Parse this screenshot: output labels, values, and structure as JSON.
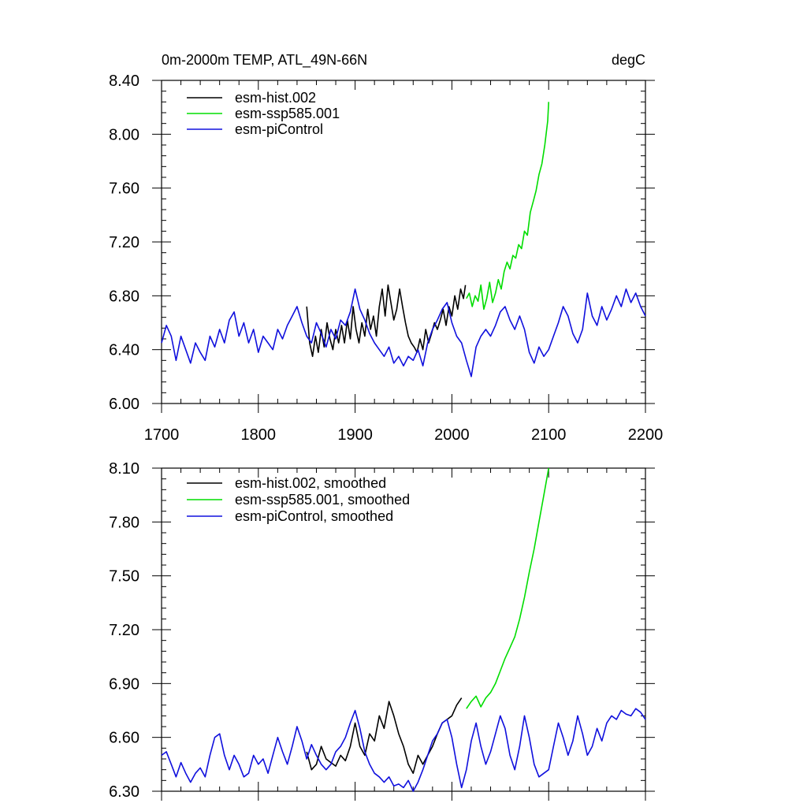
{
  "chart_data": [
    {
      "type": "line",
      "title": "0m-2000m TEMP, ATL_49N-66N",
      "units": "degC",
      "xlim": [
        1700,
        2200
      ],
      "ylim": [
        6.0,
        8.4
      ],
      "x_ticks": [
        "1700",
        "1800",
        "1900",
        "2000",
        "2100",
        "2200"
      ],
      "y_ticks": [
        "6.00",
        "6.40",
        "6.80",
        "7.20",
        "7.60",
        "8.00",
        "8.40"
      ],
      "legend_position": "top-left",
      "grid": false,
      "series": [
        {
          "name": "esm-hist.002",
          "color": "#000000",
          "x": [
            1850,
            1853,
            1856,
            1859,
            1862,
            1865,
            1868,
            1871,
            1874,
            1877,
            1880,
            1883,
            1886,
            1889,
            1892,
            1895,
            1898,
            1901,
            1904,
            1907,
            1910,
            1913,
            1916,
            1919,
            1922,
            1925,
            1928,
            1931,
            1934,
            1937,
            1940,
            1943,
            1946,
            1949,
            1952,
            1955,
            1958,
            1961,
            1964,
            1967,
            1970,
            1973,
            1976,
            1979,
            1982,
            1985,
            1988,
            1991,
            1994,
            1997,
            2000,
            2003,
            2006,
            2009,
            2012,
            2014
          ],
          "y": [
            6.72,
            6.45,
            6.35,
            6.5,
            6.38,
            6.55,
            6.42,
            6.6,
            6.48,
            6.4,
            6.55,
            6.45,
            6.58,
            6.45,
            6.62,
            6.48,
            6.72,
            6.55,
            6.45,
            6.6,
            6.5,
            6.7,
            6.55,
            6.65,
            6.5,
            6.72,
            6.85,
            6.65,
            6.88,
            6.75,
            6.62,
            6.7,
            6.85,
            6.72,
            6.6,
            6.5,
            6.45,
            6.42,
            6.38,
            6.48,
            6.4,
            6.55,
            6.45,
            6.52,
            6.6,
            6.55,
            6.62,
            6.7,
            6.58,
            6.72,
            6.65,
            6.8,
            6.7,
            6.85,
            6.78,
            6.88
          ]
        },
        {
          "name": "esm-ssp585.001",
          "color": "#00dd00",
          "x": [
            2015,
            2018,
            2021,
            2024,
            2027,
            2030,
            2033,
            2036,
            2039,
            2042,
            2045,
            2048,
            2051,
            2054,
            2057,
            2060,
            2063,
            2066,
            2069,
            2072,
            2075,
            2078,
            2081,
            2084,
            2087,
            2090,
            2093,
            2096,
            2099,
            2100
          ],
          "y": [
            6.78,
            6.82,
            6.72,
            6.8,
            6.76,
            6.88,
            6.7,
            6.78,
            6.9,
            6.75,
            6.82,
            6.92,
            6.85,
            6.98,
            7.05,
            7.0,
            7.1,
            7.08,
            7.18,
            7.15,
            7.28,
            7.25,
            7.42,
            7.5,
            7.58,
            7.7,
            7.78,
            7.92,
            8.1,
            8.24
          ]
        },
        {
          "name": "esm-piControl",
          "color": "#1010dd",
          "x": [
            1700,
            1705,
            1710,
            1715,
            1720,
            1725,
            1730,
            1735,
            1740,
            1745,
            1750,
            1755,
            1760,
            1765,
            1770,
            1775,
            1780,
            1785,
            1790,
            1795,
            1800,
            1805,
            1810,
            1815,
            1820,
            1825,
            1830,
            1835,
            1840,
            1845,
            1850,
            1855,
            1860,
            1865,
            1870,
            1875,
            1880,
            1885,
            1890,
            1895,
            1900,
            1905,
            1910,
            1915,
            1920,
            1925,
            1930,
            1935,
            1940,
            1945,
            1950,
            1955,
            1960,
            1965,
            1970,
            1975,
            1980,
            1985,
            1990,
            1995,
            2000,
            2005,
            2010,
            2015,
            2020,
            2025,
            2030,
            2035,
            2040,
            2045,
            2050,
            2055,
            2060,
            2065,
            2070,
            2075,
            2080,
            2085,
            2090,
            2095,
            2100,
            2105,
            2110,
            2115,
            2120,
            2125,
            2130,
            2135,
            2140,
            2145,
            2150,
            2155,
            2160,
            2165,
            2170,
            2175,
            2180,
            2185,
            2190,
            2195,
            2200
          ],
          "y": [
            6.45,
            6.58,
            6.5,
            6.32,
            6.5,
            6.4,
            6.3,
            6.45,
            6.38,
            6.32,
            6.5,
            6.42,
            6.55,
            6.45,
            6.62,
            6.68,
            6.5,
            6.6,
            6.45,
            6.55,
            6.38,
            6.5,
            6.45,
            6.4,
            6.55,
            6.48,
            6.58,
            6.65,
            6.72,
            6.6,
            6.5,
            6.45,
            6.6,
            6.52,
            6.42,
            6.55,
            6.48,
            6.62,
            6.58,
            6.68,
            6.85,
            6.7,
            6.62,
            6.52,
            6.45,
            6.4,
            6.35,
            6.42,
            6.3,
            6.35,
            6.28,
            6.35,
            6.32,
            6.4,
            6.28,
            6.45,
            6.55,
            6.62,
            6.7,
            6.75,
            6.6,
            6.5,
            6.45,
            6.32,
            6.2,
            6.42,
            6.5,
            6.55,
            6.5,
            6.58,
            6.68,
            6.72,
            6.62,
            6.55,
            6.65,
            6.55,
            6.38,
            6.3,
            6.42,
            6.35,
            6.4,
            6.5,
            6.6,
            6.72,
            6.65,
            6.52,
            6.45,
            6.55,
            6.82,
            6.65,
            6.58,
            6.72,
            6.62,
            6.7,
            6.8,
            6.72,
            6.85,
            6.75,
            6.82,
            6.72,
            6.65
          ]
        }
      ]
    },
    {
      "type": "line",
      "xlim": [
        1700,
        2200
      ],
      "ylim": [
        6.3,
        8.1
      ],
      "y_ticks": [
        "6.30",
        "6.60",
        "6.90",
        "7.20",
        "7.50",
        "7.80",
        "8.10"
      ],
      "legend_position": "top-left",
      "grid": false,
      "series": [
        {
          "name": "esm-hist.002, smoothed",
          "color": "#000000",
          "x": [
            1850,
            1855,
            1860,
            1865,
            1870,
            1875,
            1880,
            1885,
            1890,
            1895,
            1900,
            1905,
            1910,
            1915,
            1920,
            1925,
            1930,
            1935,
            1940,
            1945,
            1950,
            1955,
            1960,
            1965,
            1970,
            1975,
            1980,
            1985,
            1990,
            1995,
            2000,
            2005,
            2010
          ],
          "y": [
            6.52,
            6.42,
            6.45,
            6.55,
            6.48,
            6.46,
            6.44,
            6.5,
            6.47,
            6.55,
            6.68,
            6.55,
            6.5,
            6.62,
            6.58,
            6.72,
            6.65,
            6.8,
            6.72,
            6.62,
            6.55,
            6.45,
            6.4,
            6.5,
            6.45,
            6.5,
            6.55,
            6.62,
            6.68,
            6.7,
            6.72,
            6.78,
            6.82
          ]
        },
        {
          "name": "esm-ssp585.001, smoothed",
          "color": "#00dd00",
          "x": [
            2015,
            2020,
            2025,
            2030,
            2035,
            2040,
            2045,
            2050,
            2055,
            2060,
            2065,
            2070,
            2075,
            2080,
            2085,
            2090,
            2095,
            2100
          ],
          "y": [
            6.76,
            6.8,
            6.83,
            6.77,
            6.82,
            6.85,
            6.9,
            6.97,
            7.04,
            7.1,
            7.16,
            7.26,
            7.38,
            7.52,
            7.65,
            7.8,
            7.95,
            8.1
          ]
        },
        {
          "name": "esm-piControl, smoothed",
          "color": "#1010dd",
          "x": [
            1700,
            1705,
            1710,
            1715,
            1720,
            1725,
            1730,
            1735,
            1740,
            1745,
            1750,
            1755,
            1760,
            1765,
            1770,
            1775,
            1780,
            1785,
            1790,
            1795,
            1800,
            1805,
            1810,
            1815,
            1820,
            1825,
            1830,
            1835,
            1840,
            1845,
            1850,
            1855,
            1860,
            1865,
            1870,
            1875,
            1880,
            1885,
            1890,
            1895,
            1900,
            1905,
            1910,
            1915,
            1920,
            1925,
            1930,
            1935,
            1940,
            1945,
            1950,
            1955,
            1960,
            1965,
            1970,
            1975,
            1980,
            1985,
            1990,
            1995,
            2000,
            2005,
            2010,
            2015,
            2020,
            2025,
            2030,
            2035,
            2040,
            2045,
            2050,
            2055,
            2060,
            2065,
            2070,
            2075,
            2080,
            2085,
            2090,
            2095,
            2100,
            2105,
            2110,
            2115,
            2120,
            2125,
            2130,
            2135,
            2140,
            2145,
            2150,
            2155,
            2160,
            2165,
            2170,
            2175,
            2180,
            2185,
            2190,
            2195,
            2200
          ],
          "y": [
            6.5,
            6.52,
            6.45,
            6.38,
            6.46,
            6.4,
            6.35,
            6.4,
            6.43,
            6.38,
            6.5,
            6.6,
            6.62,
            6.5,
            6.42,
            6.5,
            6.45,
            6.38,
            6.4,
            6.5,
            6.45,
            6.48,
            6.4,
            6.5,
            6.6,
            6.52,
            6.45,
            6.55,
            6.66,
            6.58,
            6.48,
            6.56,
            6.5,
            6.45,
            6.42,
            6.45,
            6.52,
            6.55,
            6.6,
            6.68,
            6.75,
            6.65,
            6.52,
            6.45,
            6.4,
            6.38,
            6.35,
            6.38,
            6.33,
            6.34,
            6.32,
            6.36,
            6.3,
            6.35,
            6.42,
            6.5,
            6.58,
            6.62,
            6.68,
            6.7,
            6.6,
            6.45,
            6.32,
            6.42,
            6.58,
            6.68,
            6.55,
            6.45,
            6.52,
            6.62,
            6.72,
            6.65,
            6.5,
            6.42,
            6.55,
            6.72,
            6.6,
            6.45,
            6.38,
            6.4,
            6.42,
            6.55,
            6.68,
            6.6,
            6.5,
            6.58,
            6.72,
            6.62,
            6.5,
            6.55,
            6.65,
            6.58,
            6.68,
            6.72,
            6.7,
            6.75,
            6.73,
            6.72,
            6.76,
            6.74,
            6.7
          ]
        }
      ]
    }
  ]
}
